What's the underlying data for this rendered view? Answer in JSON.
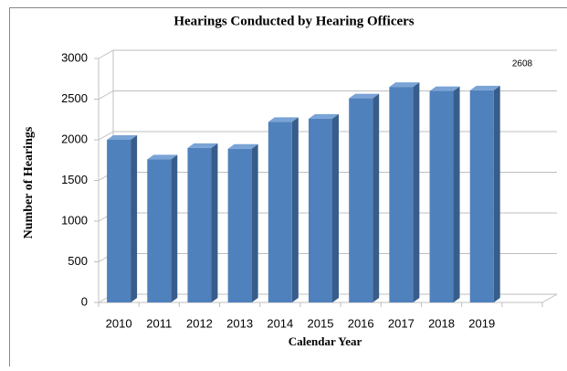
{
  "chart_data": {
    "type": "bar3d",
    "title": "Hearings Conducted by Hearing Officers",
    "x_label": "Calendar Year",
    "y_label": "Number of Hearings",
    "categories": [
      "2010",
      "2011",
      "2012",
      "2013",
      "2014",
      "2015",
      "2016",
      "2017",
      "2018",
      "2019",
      null
    ],
    "values": [
      2000,
      1760,
      1900,
      1890,
      2220,
      2260,
      2510,
      2650,
      2600,
      2608,
      null
    ],
    "color": "#4f81bd",
    "ylim": [
      0,
      3000
    ],
    "yticks": [
      0,
      500,
      1000,
      1500,
      2000,
      2500,
      3000
    ],
    "grid": true
  }
}
